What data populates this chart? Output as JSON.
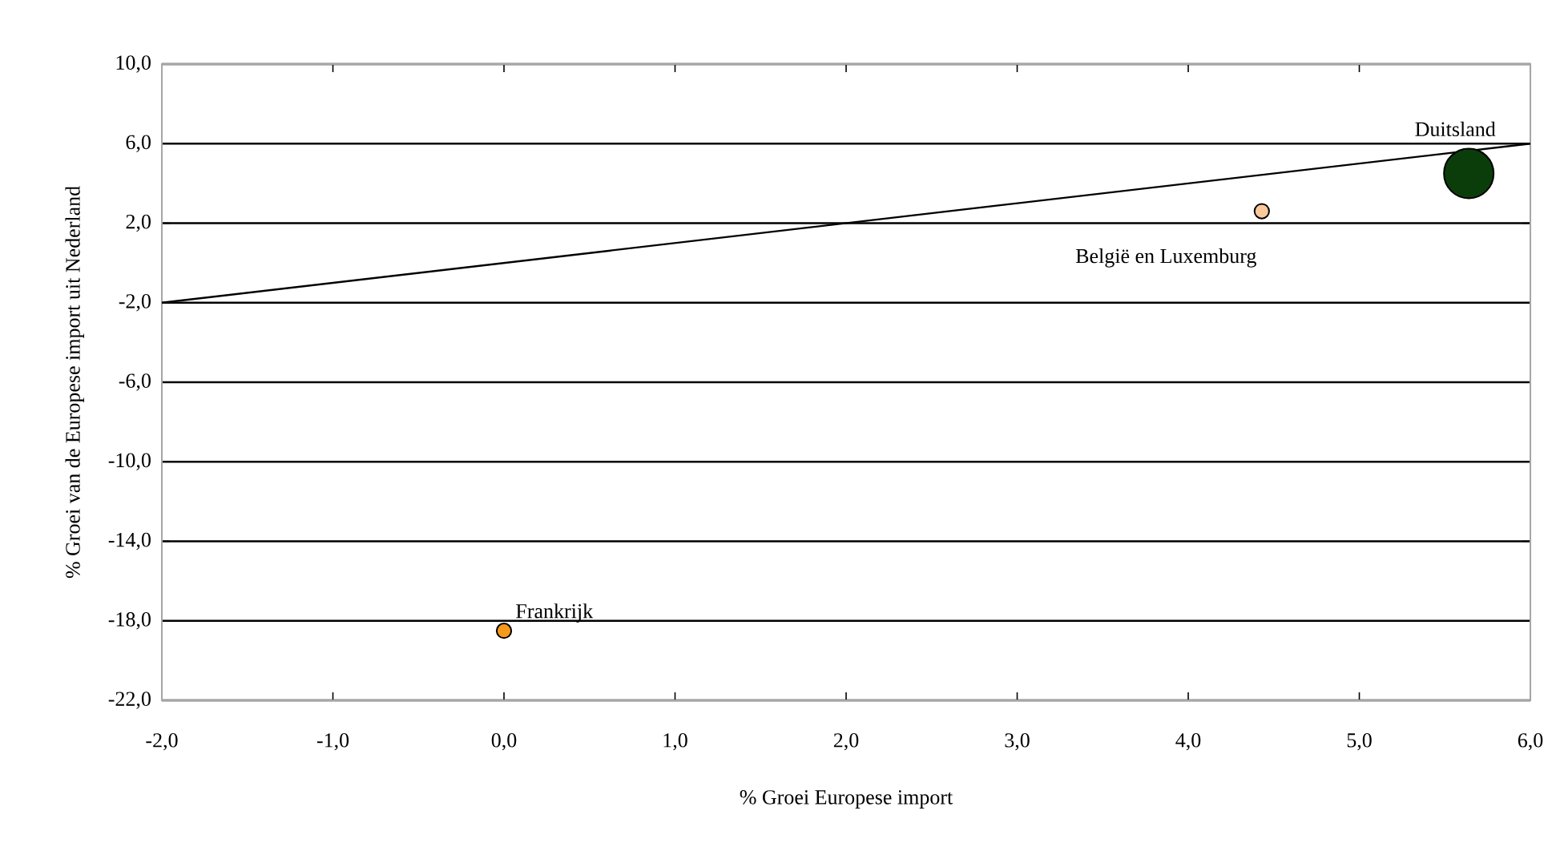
{
  "chart_data": {
    "type": "bubble",
    "xlabel": "% Groei Europese import",
    "ylabel": "% Groei van de Europese import uit Nederland",
    "xlim": [
      -2,
      6
    ],
    "ylim": [
      -22,
      10
    ],
    "xticks": [
      {
        "value": -2,
        "label": "-2,0"
      },
      {
        "value": -1,
        "label": "-1,0"
      },
      {
        "value": 0,
        "label": "0,0"
      },
      {
        "value": 1,
        "label": "1,0"
      },
      {
        "value": 2,
        "label": "2,0"
      },
      {
        "value": 3,
        "label": "3,0"
      },
      {
        "value": 4,
        "label": "4,0"
      },
      {
        "value": 5,
        "label": "5,0"
      },
      {
        "value": 6,
        "label": "6,0"
      }
    ],
    "yticks": [
      {
        "value": -22,
        "label": "-22,0"
      },
      {
        "value": -18,
        "label": "-18,0"
      },
      {
        "value": -14,
        "label": "-14,0"
      },
      {
        "value": -10,
        "label": "-10,0"
      },
      {
        "value": -6,
        "label": "-6,0"
      },
      {
        "value": -2,
        "label": "-2,0"
      },
      {
        "value": 2,
        "label": "2,0"
      },
      {
        "value": 6,
        "label": "6,0"
      },
      {
        "value": 10,
        "label": "10,0"
      }
    ],
    "grid": "y",
    "series": [
      {
        "name": "Duitsland",
        "color": "#0b3d0b",
        "x": [
          5.64
        ],
        "values": [
          4.5
        ],
        "sizes": [
          1
        ]
      },
      {
        "name": "België en Luxemburg",
        "color": "#f9c89b",
        "x": [
          4.43
        ],
        "values": [
          2.6
        ],
        "sizes": [
          0.1
        ]
      },
      {
        "name": "Frankrijk",
        "color": "#f79a1c",
        "x": [
          0.0
        ],
        "values": [
          -18.5
        ],
        "sizes": [
          0.1
        ]
      },
      {
        "type": "line",
        "color": "#000000",
        "x": [
          -2,
          6
        ],
        "values": [
          -2,
          6
        ]
      }
    ]
  }
}
